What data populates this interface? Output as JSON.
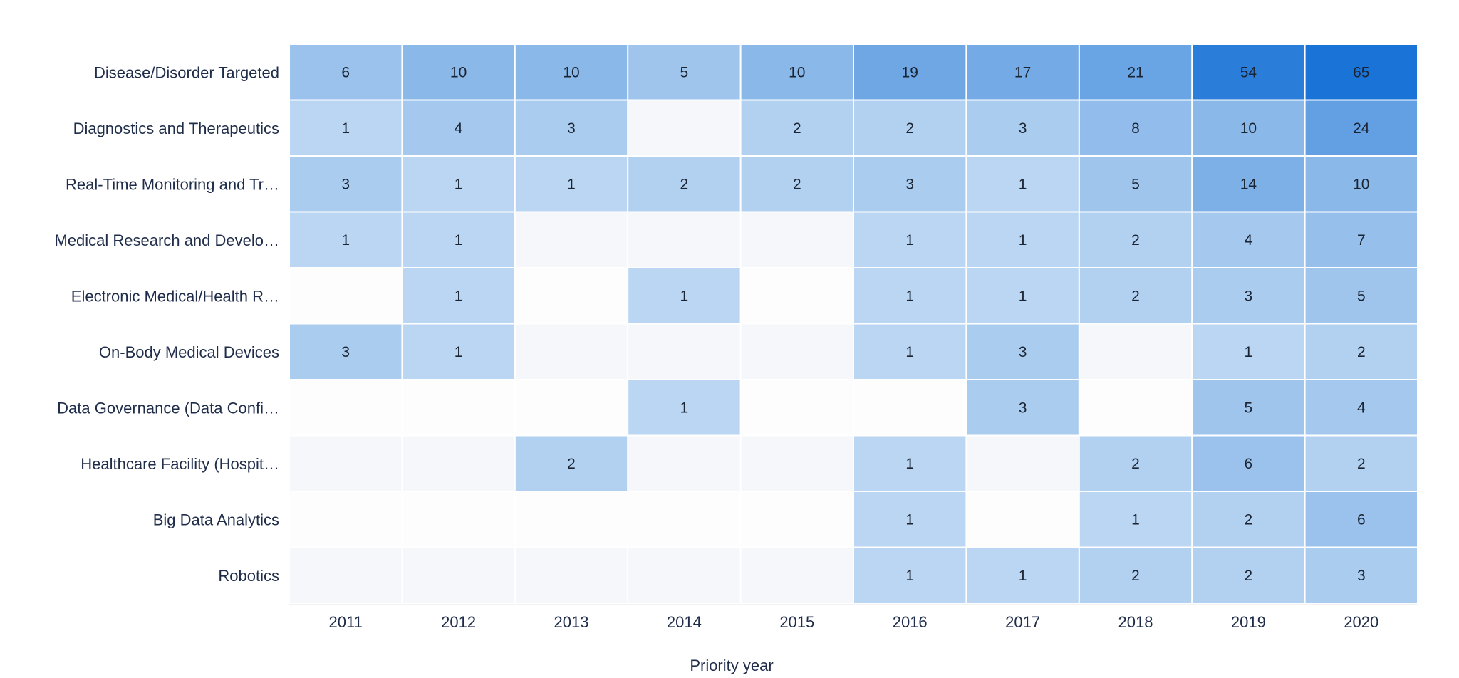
{
  "chart_data": {
    "type": "heatmap",
    "xlabel": "Priority year",
    "ylabel": "",
    "x_categories": [
      "2011",
      "2012",
      "2013",
      "2014",
      "2015",
      "2016",
      "2017",
      "2018",
      "2019",
      "2020"
    ],
    "y_categories": [
      "Disease/Disorder Targeted",
      "Diagnostics and Therapeutics",
      "Real-Time Monitoring and Tr…",
      "Medical Research and Develo…",
      "Electronic Medical/Health R…",
      "On-Body Medical Devices",
      "Data Governance (Data Confi…",
      "Healthcare Facility (Hospit…",
      "Big Data  Analytics",
      "Robotics"
    ],
    "values": [
      [
        6,
        10,
        10,
        5,
        10,
        19,
        17,
        21,
        54,
        65
      ],
      [
        1,
        4,
        3,
        null,
        2,
        2,
        3,
        8,
        10,
        24
      ],
      [
        3,
        1,
        1,
        2,
        2,
        3,
        1,
        5,
        14,
        10
      ],
      [
        1,
        1,
        null,
        null,
        null,
        1,
        1,
        2,
        4,
        7
      ],
      [
        null,
        1,
        null,
        1,
        null,
        1,
        1,
        2,
        3,
        5
      ],
      [
        3,
        1,
        null,
        null,
        null,
        1,
        3,
        null,
        1,
        2
      ],
      [
        null,
        null,
        null,
        1,
        null,
        null,
        3,
        null,
        5,
        4
      ],
      [
        null,
        null,
        2,
        null,
        null,
        1,
        null,
        2,
        6,
        2
      ],
      [
        null,
        null,
        null,
        null,
        null,
        1,
        null,
        1,
        2,
        6
      ],
      [
        null,
        null,
        null,
        null,
        null,
        1,
        1,
        2,
        2,
        3
      ]
    ],
    "color_scale": {
      "low": "#d2e4f6",
      "high": "#1a73d6",
      "empty_even": "#fdfdfd",
      "empty_odd": "#f5f7fb"
    },
    "grid": false,
    "legend": "none"
  }
}
